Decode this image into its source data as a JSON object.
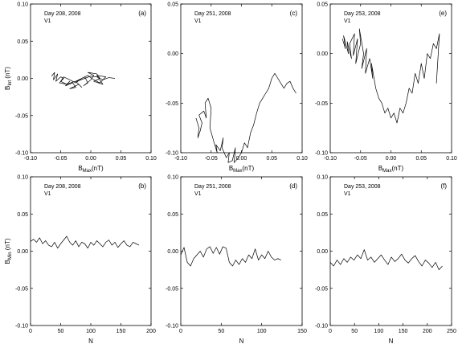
{
  "chart_data": [
    {
      "id": "a",
      "type": "line",
      "panel_label": "(a)",
      "annotation_line1": "Day 208, 2008",
      "annotation_line2": "V1",
      "xlim": [
        -0.1,
        0.1
      ],
      "ylim": [
        -0.1,
        0.1
      ],
      "xticks": [
        "-0.10",
        "-0.05",
        "0.00",
        "0.05",
        "0.10"
      ],
      "yticks": [
        "0.10",
        "0.05",
        "0.00",
        "-0.05",
        "-0.10"
      ],
      "xlabel": "B",
      "xlabel_sub": "Max",
      "xlabel_unit": "(nT)",
      "ylabel": "B",
      "ylabel_sub": "Int",
      "ylabel_unit": " (nT)",
      "x": [
        -0.065,
        -0.06,
        -0.062,
        -0.055,
        -0.058,
        -0.05,
        -0.045,
        -0.052,
        -0.04,
        -0.035,
        -0.042,
        -0.03,
        -0.025,
        -0.035,
        -0.02,
        -0.015,
        -0.025,
        -0.01,
        -0.005,
        -0.012,
        0.0,
        0.005,
        -0.005,
        0.01,
        0.015,
        0.005,
        0.02,
        0.01,
        0.025,
        0.015,
        0.005,
        -0.005,
        -0.015,
        -0.025,
        -0.035,
        -0.045,
        -0.05,
        -0.04,
        -0.03,
        -0.02,
        -0.01,
        0.0,
        0.01,
        0.02,
        0.03,
        0.04
      ],
      "y": [
        0.003,
        0.008,
        -0.002,
        0.006,
        -0.004,
        0.002,
        0.0,
        -0.006,
        -0.008,
        -0.004,
        -0.01,
        -0.006,
        -0.012,
        -0.014,
        -0.008,
        -0.012,
        -0.004,
        0.002,
        -0.006,
        -0.01,
        -0.002,
        0.004,
        0.008,
        0.006,
        0.0,
        -0.004,
        -0.008,
        0.004,
        0.002,
        -0.006,
        -0.002,
        0.004,
        0.0,
        -0.006,
        -0.002,
        0.002,
        -0.004,
        -0.008,
        -0.005,
        -0.003,
        0.0,
        0.003,
        0.002,
        -0.002,
        0.001,
        0.0
      ]
    },
    {
      "id": "c",
      "type": "line",
      "panel_label": "(c)",
      "annotation_line1": "Day 251, 2008",
      "annotation_line2": "V1",
      "xlim": [
        -0.1,
        0.1
      ],
      "ylim": [
        -0.1,
        0.05
      ],
      "xticks": [
        "-0.10",
        "-0.05",
        "0.00",
        "0.05",
        "0.10"
      ],
      "yticks": [
        "0.05",
        "0.00",
        "-0.05",
        "-0.10"
      ],
      "xlabel": "B",
      "xlabel_sub": "Max",
      "xlabel_unit": "(nT)",
      "x": [
        -0.075,
        -0.07,
        -0.072,
        -0.068,
        -0.065,
        -0.07,
        -0.062,
        -0.058,
        -0.06,
        -0.055,
        -0.05,
        -0.052,
        -0.045,
        -0.04,
        -0.042,
        -0.035,
        -0.03,
        -0.032,
        -0.025,
        -0.02,
        -0.022,
        -0.015,
        -0.01,
        -0.012,
        -0.005,
        0.0,
        0.005,
        0.01,
        0.015,
        0.02,
        0.025,
        0.03,
        0.035,
        0.04,
        0.045,
        0.05,
        0.055,
        0.06,
        0.065,
        0.07,
        0.075,
        0.08,
        0.085,
        0.09
      ],
      "y": [
        -0.065,
        -0.075,
        -0.085,
        -0.078,
        -0.07,
        -0.062,
        -0.058,
        -0.065,
        -0.05,
        -0.045,
        -0.055,
        -0.075,
        -0.09,
        -0.1,
        -0.092,
        -0.098,
        -0.085,
        -0.095,
        -0.105,
        -0.1,
        -0.11,
        -0.108,
        -0.095,
        -0.11,
        -0.105,
        -0.1,
        -0.09,
        -0.095,
        -0.08,
        -0.072,
        -0.06,
        -0.05,
        -0.045,
        -0.04,
        -0.035,
        -0.025,
        -0.02,
        -0.025,
        -0.03,
        -0.035,
        -0.03,
        -0.028,
        -0.035,
        -0.04
      ]
    },
    {
      "id": "e",
      "type": "line",
      "panel_label": "(e)",
      "annotation_line1": "Day 253, 2008",
      "annotation_line2": "V1",
      "xlim": [
        -0.1,
        0.1
      ],
      "ylim": [
        -0.1,
        0.05
      ],
      "xticks": [
        "-0.10",
        "-0.05",
        "0.00",
        "0.05",
        "0.10"
      ],
      "yticks": [
        "0.05",
        "0.00",
        "-0.05",
        "-0.10"
      ],
      "xlabel": "B",
      "xlabel_sub": "Max",
      "xlabel_unit": "(nT)",
      "x": [
        -0.08,
        -0.075,
        -0.078,
        -0.07,
        -0.072,
        -0.065,
        -0.068,
        -0.06,
        -0.062,
        -0.055,
        -0.058,
        -0.05,
        -0.052,
        -0.045,
        -0.048,
        -0.04,
        -0.042,
        -0.035,
        -0.03,
        -0.032,
        -0.025,
        -0.02,
        -0.015,
        -0.01,
        -0.005,
        0.0,
        0.005,
        0.01,
        0.015,
        0.02,
        0.025,
        0.03,
        0.035,
        0.04,
        0.045,
        0.05,
        0.055,
        0.06,
        0.065,
        0.07,
        0.075,
        0.08,
        0.075
      ],
      "y": [
        0.015,
        0.005,
        0.018,
        0.0,
        0.012,
        -0.005,
        0.01,
        0.02,
        -0.002,
        0.015,
        -0.01,
        0.01,
        0.025,
        0.0,
        -0.015,
        0.005,
        -0.02,
        -0.005,
        -0.025,
        -0.01,
        -0.035,
        -0.045,
        -0.05,
        -0.06,
        -0.055,
        -0.065,
        -0.06,
        -0.07,
        -0.055,
        -0.06,
        -0.05,
        -0.035,
        -0.04,
        -0.02,
        -0.03,
        -0.01,
        -0.025,
        0.0,
        -0.005,
        0.01,
        0.005,
        0.02,
        -0.03
      ]
    },
    {
      "id": "b",
      "type": "line",
      "panel_label": "(b)",
      "annotation_line1": "Day 208, 2008",
      "annotation_line2": "V1",
      "xlim": [
        0,
        200
      ],
      "ylim": [
        -0.1,
        0.1
      ],
      "xticks": [
        "0",
        "50",
        "100",
        "150",
        "200"
      ],
      "yticks": [
        "0.10",
        "0.05",
        "0.00",
        "-0.05",
        "-0.10"
      ],
      "xlabel": "N",
      "ylabel": "B",
      "ylabel_sub": "Min",
      "ylabel_unit": " (nT)",
      "x": [
        0,
        5,
        10,
        15,
        20,
        25,
        30,
        35,
        40,
        45,
        50,
        55,
        60,
        65,
        70,
        75,
        80,
        85,
        90,
        95,
        100,
        105,
        110,
        115,
        120,
        125,
        130,
        135,
        140,
        145,
        150,
        155,
        160,
        165,
        170,
        175,
        180
      ],
      "y": [
        0.013,
        0.016,
        0.012,
        0.018,
        0.01,
        0.014,
        0.008,
        0.006,
        0.012,
        0.004,
        0.01,
        0.015,
        0.02,
        0.012,
        0.008,
        0.014,
        0.006,
        0.012,
        0.01,
        0.004,
        0.012,
        0.008,
        0.014,
        0.01,
        0.006,
        0.012,
        0.015,
        0.008,
        0.012,
        0.005,
        0.01,
        0.014,
        0.008,
        0.006,
        0.012,
        0.01,
        0.008
      ]
    },
    {
      "id": "d",
      "type": "line",
      "panel_label": "(d)",
      "annotation_line1": "Day 251, 2008",
      "annotation_line2": "V1",
      "xlim": [
        0,
        150
      ],
      "ylim": [
        -0.1,
        0.1
      ],
      "xticks": [
        "0",
        "50",
        "100",
        "150"
      ],
      "yticks": [
        "0.10",
        "0.05",
        "0.00",
        "-0.05",
        "-0.10"
      ],
      "xlabel": "N",
      "x": [
        0,
        4,
        8,
        12,
        16,
        20,
        24,
        28,
        32,
        36,
        40,
        44,
        48,
        52,
        56,
        60,
        64,
        68,
        72,
        76,
        80,
        84,
        88,
        92,
        96,
        100,
        104,
        108,
        112,
        116,
        120,
        124
      ],
      "y": [
        -0.005,
        0.005,
        -0.015,
        -0.02,
        -0.01,
        -0.005,
        0.0,
        -0.008,
        0.003,
        0.006,
        -0.003,
        0.005,
        -0.004,
        0.006,
        0.004,
        -0.015,
        -0.02,
        -0.012,
        -0.018,
        -0.01,
        -0.015,
        -0.005,
        -0.01,
        0.003,
        -0.012,
        -0.005,
        -0.01,
        0.0,
        -0.008,
        -0.012,
        -0.01,
        -0.012
      ]
    },
    {
      "id": "f",
      "type": "line",
      "panel_label": "(f)",
      "annotation_line1": "Day 253, 2008",
      "annotation_line2": "V1",
      "xlim": [
        0,
        250
      ],
      "ylim": [
        -0.1,
        0.1
      ],
      "xticks": [
        "0",
        "50",
        "100",
        "150",
        "200",
        "250"
      ],
      "yticks": [
        "0.10",
        "0.05",
        "0.00",
        "-0.05",
        "-0.10"
      ],
      "xlabel": "N",
      "x": [
        0,
        7,
        14,
        21,
        28,
        35,
        42,
        49,
        56,
        63,
        70,
        77,
        84,
        91,
        98,
        105,
        112,
        119,
        126,
        133,
        140,
        147,
        154,
        161,
        168,
        175,
        182,
        189,
        196,
        203,
        210,
        217,
        224,
        231
      ],
      "y": [
        -0.015,
        -0.02,
        -0.012,
        -0.018,
        -0.01,
        -0.015,
        -0.008,
        -0.012,
        -0.005,
        -0.01,
        0.002,
        -0.012,
        -0.008,
        -0.015,
        -0.01,
        -0.005,
        -0.012,
        -0.018,
        -0.008,
        -0.014,
        -0.01,
        -0.004,
        -0.012,
        -0.016,
        -0.01,
        -0.006,
        -0.014,
        -0.02,
        -0.012,
        -0.016,
        -0.022,
        -0.015,
        -0.025,
        -0.02
      ]
    }
  ]
}
